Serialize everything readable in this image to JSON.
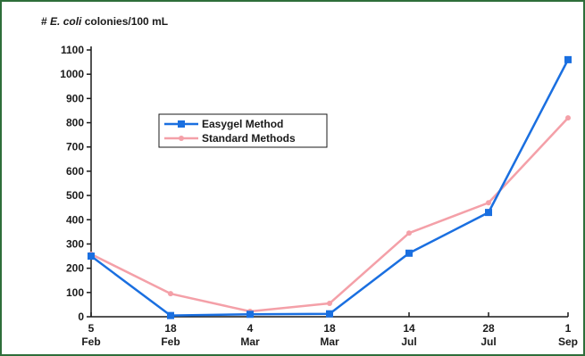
{
  "chart_data": {
    "type": "line",
    "ylabel_prefix": "# ",
    "ylabel_italic": "E. coli",
    "ylabel_suffix": " colonies/100 mL",
    "xlabel": "",
    "title": "",
    "categories": [
      {
        "day": "5",
        "month": "Feb"
      },
      {
        "day": "18",
        "month": "Feb"
      },
      {
        "day": "4",
        "month": "Mar"
      },
      {
        "day": "18",
        "month": "Mar"
      },
      {
        "day": "14",
        "month": "Jul"
      },
      {
        "day": "28",
        "month": "Jul"
      },
      {
        "day": "1",
        "month": "Sep"
      }
    ],
    "yticks": [
      0,
      100,
      200,
      300,
      400,
      500,
      600,
      700,
      800,
      900,
      1000,
      1100
    ],
    "ylim": [
      0,
      1100
    ],
    "grid": false,
    "legend_position": "upper-left",
    "series": [
      {
        "name": "Easygel Method",
        "color": "#1a6fe0",
        "marker": "square",
        "values": [
          250,
          5,
          10,
          12,
          262,
          430,
          1060
        ]
      },
      {
        "name": "Standard Methods",
        "color": "#f4a0a8",
        "marker": "circle",
        "values": [
          258,
          95,
          22,
          55,
          345,
          470,
          820
        ]
      }
    ]
  }
}
